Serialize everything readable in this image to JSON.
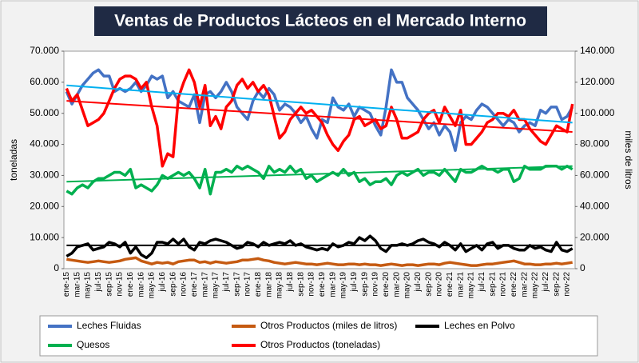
{
  "chart_data": {
    "type": "line",
    "title": "Ventas de Productos Lácteos en el Mercado Interno",
    "y_label": "toneladas",
    "y2_label": "miles de litros",
    "categories": [
      "ene-15",
      null,
      "mar-15",
      null,
      "may-15",
      null,
      "jul-15",
      null,
      "sep-15",
      null,
      "nov-15",
      null,
      "ene-16",
      null,
      "mar-16",
      null,
      "may-16",
      null,
      "jul-16",
      null,
      "sep-16",
      null,
      "nov-16",
      null,
      "ene-17",
      null,
      "mar-17",
      null,
      "may-17",
      null,
      "jul-17",
      null,
      "sep-17",
      null,
      "nov-17",
      null,
      "ene-18",
      null,
      "mar-18",
      null,
      "may-18",
      null,
      "jul-18",
      null,
      "sep-18",
      null,
      "nov-18",
      null,
      "ene-19",
      null,
      "mar-19",
      null,
      "may-19",
      null,
      "jul-19",
      null,
      "sep-19",
      null,
      "nov-19",
      null,
      "ene-20",
      null,
      "mar-20",
      null,
      "may-20",
      null,
      "jul-20",
      null,
      "sep-20",
      null,
      "nov-20",
      null,
      "ene-21",
      null,
      "mar-21",
      null,
      "may-21",
      null,
      "jul-21",
      null,
      "sep-21",
      null,
      "nov-21",
      null,
      "ene-22",
      null,
      "mar-22",
      null,
      "may-22",
      null,
      "jul-22",
      null,
      "sep-22",
      null,
      "nov-22",
      null
    ],
    "ylim": [
      0,
      70000
    ],
    "yticks": [
      0,
      {
        "value": 10000,
        "label": "10.000"
      },
      {
        "value": 20000,
        "label": "20.000"
      },
      {
        "value": 30000,
        "label": "30.000"
      },
      {
        "value": 40000,
        "label": "40.000"
      },
      {
        "value": 50000,
        "label": "50.000"
      },
      {
        "value": 60000,
        "label": "60.000"
      },
      {
        "value": 70000,
        "label": "70.000"
      }
    ],
    "y2lim": [
      0,
      140000
    ],
    "y2ticks": [
      0,
      {
        "value": 20000,
        "label": "20.000"
      },
      {
        "value": 40000,
        "label": "40.000"
      },
      {
        "value": 60000,
        "label": "60.000"
      },
      {
        "value": 80000,
        "label": "80.000"
      },
      {
        "value": 100000,
        "label": "100.000"
      },
      {
        "value": 120000,
        "label": "120.000"
      },
      {
        "value": 140000,
        "label": "140.000"
      }
    ],
    "series": [
      {
        "name": "Leches Fluidas",
        "color": "#4472c4",
        "trend": [
          59000,
          47000
        ],
        "trend_color": "#00b0f0",
        "values": [
          57000,
          53000,
          56000,
          59000,
          61000,
          63000,
          64000,
          62000,
          62000,
          57000,
          58000,
          57000,
          58000,
          60000,
          57000,
          59000,
          62000,
          61000,
          62000,
          55000,
          57000,
          54000,
          53000,
          52000,
          56000,
          47000,
          56000,
          57000,
          55000,
          57000,
          60000,
          57000,
          52000,
          50000,
          48000,
          54000,
          57000,
          55000,
          58000,
          56000,
          51000,
          53000,
          52000,
          50000,
          47000,
          49000,
          45000,
          42000,
          48000,
          47000,
          55000,
          52000,
          51000,
          53000,
          49000,
          52000,
          51000,
          50000,
          46000,
          43000,
          52000,
          64000,
          60000,
          60000,
          55000,
          53000,
          51000,
          48000,
          45000,
          47000,
          43000,
          46000,
          44000,
          38000,
          47000,
          49000,
          48000,
          51000,
          53000,
          52000,
          50000,
          48000,
          46000,
          48000,
          47000,
          44000,
          46000,
          47000,
          46000,
          51000,
          50000,
          52000,
          52000,
          48000,
          49000,
          52000
        ]
      },
      {
        "name": "Otros Productos (miles de litros)",
        "color": "#c55a11",
        "axis": "y2",
        "values": [
          6000,
          5500,
          5000,
          4500,
          4000,
          4500,
          5000,
          4500,
          4000,
          4500,
          5000,
          6000,
          6500,
          7000,
          5000,
          4000,
          3000,
          4000,
          3500,
          4000,
          3000,
          4500,
          5000,
          5500,
          5500,
          4000,
          4500,
          3500,
          4500,
          4000,
          3500,
          4000,
          4500,
          5500,
          5500,
          6000,
          6500,
          5500,
          5000,
          4000,
          3500,
          3000,
          3500,
          4000,
          3500,
          3000,
          3000,
          2500,
          3000,
          3500,
          3000,
          2500,
          2500,
          3000,
          3000,
          2500,
          3000,
          2500,
          2500,
          2000,
          2500,
          3000,
          2500,
          2000,
          2500,
          2500,
          2000,
          2500,
          3000,
          3000,
          2500,
          3500,
          4000,
          3500,
          3000,
          2500,
          2000,
          2000,
          2500,
          3000,
          3000,
          3500,
          4000,
          4500,
          5000,
          4000,
          3000,
          3000,
          2500,
          2500,
          3000,
          3000,
          3500,
          3000,
          3500,
          4000
        ]
      },
      {
        "name": "Leches en Polvo",
        "color": "#000000",
        "trend": [
          7500,
          7500
        ],
        "trend_color": "#000000",
        "values": [
          4000,
          5000,
          7000,
          7500,
          8000,
          6000,
          6500,
          7000,
          8500,
          8000,
          7000,
          8500,
          5000,
          7000,
          4500,
          3500,
          5000,
          8500,
          8500,
          8000,
          9500,
          8000,
          9500,
          7000,
          6000,
          8500,
          8000,
          9000,
          9500,
          9000,
          8500,
          7500,
          6500,
          7000,
          8500,
          8000,
          7000,
          8500,
          7500,
          8000,
          8500,
          8000,
          9000,
          7500,
          8000,
          7000,
          6500,
          6000,
          6500,
          6000,
          8000,
          7000,
          7500,
          8500,
          8000,
          10000,
          9000,
          10500,
          9000,
          6500,
          5500,
          7500,
          7500,
          8000,
          7500,
          8000,
          9000,
          9500,
          8500,
          8000,
          7000,
          8500,
          7500,
          6000,
          8000,
          5500,
          6500,
          7500,
          6000,
          8000,
          8500,
          6500,
          7500,
          7500,
          6500,
          6000,
          6000,
          7500,
          6500,
          7000,
          6000,
          5500,
          8500,
          6000,
          5500,
          6500
        ]
      },
      {
        "name": "Quesos",
        "color": "#00b050",
        "trend": [
          28000,
          33000
        ],
        "trend_color": "#00b050",
        "values": [
          25000,
          24000,
          26000,
          27000,
          26000,
          28000,
          29000,
          29000,
          30000,
          31000,
          31000,
          30000,
          32000,
          26000,
          27000,
          26000,
          25000,
          27000,
          30000,
          29000,
          30000,
          31000,
          30000,
          31000,
          29000,
          26000,
          32000,
          24000,
          31000,
          31000,
          32000,
          31000,
          33000,
          32000,
          33000,
          32000,
          31000,
          29000,
          33000,
          31000,
          32000,
          31000,
          33000,
          31000,
          32000,
          29000,
          30000,
          28000,
          29000,
          30000,
          31000,
          30000,
          32000,
          30000,
          31000,
          28000,
          29000,
          27000,
          28000,
          28000,
          29000,
          27000,
          30000,
          31000,
          30000,
          31000,
          32000,
          30000,
          31000,
          31000,
          30000,
          32000,
          30000,
          28000,
          32000,
          31000,
          31000,
          32000,
          33000,
          32000,
          32000,
          31000,
          32000,
          32000,
          28000,
          29000,
          33000,
          32000,
          32000,
          32000,
          33000,
          33000,
          33000,
          32000,
          33000,
          32000
        ]
      },
      {
        "name": "Otros Productos (toneladas)",
        "color": "#ff0000",
        "trend": [
          54000,
          44000
        ],
        "trend_color": "#ff0000",
        "values": [
          58000,
          54000,
          56000,
          51000,
          46000,
          47000,
          48000,
          50000,
          54000,
          58000,
          61000,
          62000,
          62000,
          61000,
          58000,
          60000,
          52000,
          46000,
          33000,
          37000,
          36000,
          55000,
          60000,
          64000,
          60000,
          52000,
          59000,
          46000,
          49000,
          45000,
          52000,
          54000,
          59000,
          61000,
          58000,
          60000,
          57000,
          59000,
          56000,
          49000,
          42000,
          44000,
          48000,
          50000,
          52000,
          50000,
          51000,
          49000,
          47000,
          43000,
          40000,
          38000,
          41000,
          43000,
          48000,
          49000,
          46000,
          47000,
          48000,
          45000,
          46000,
          52000,
          48000,
          42000,
          42000,
          43000,
          44000,
          48000,
          50000,
          51000,
          47000,
          52000,
          49000,
          46000,
          51000,
          40000,
          40000,
          42000,
          44000,
          47000,
          48000,
          50000,
          50000,
          49000,
          51000,
          48000,
          48000,
          45000,
          43000,
          41000,
          40000,
          43000,
          46000,
          45000,
          44000,
          53000
        ]
      }
    ]
  }
}
